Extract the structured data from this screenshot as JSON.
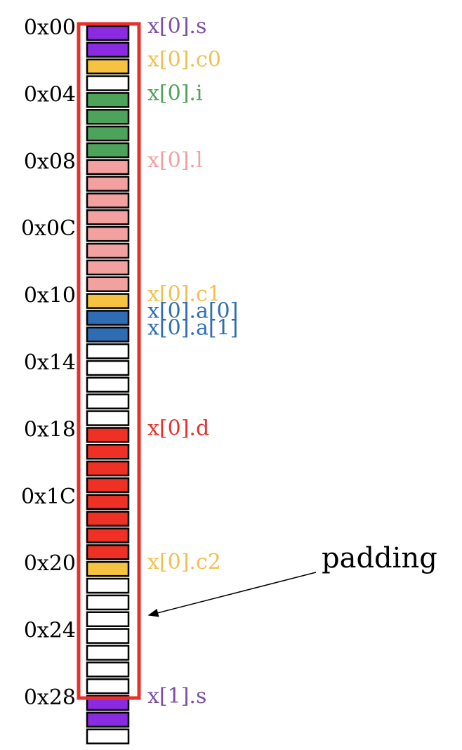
{
  "colors": {
    "short": "#8a2be2",
    "char": "#f5c242",
    "int": "#4ea35a",
    "long": "#f2a0a0",
    "array": "#2e6db4",
    "double": "#ee3124",
    "padding": "#ffffff",
    "struct_outline": "#e8302a",
    "cell_border": "#000000",
    "address_text": "#000000"
  },
  "byte_cells": [
    "short",
    "short",
    "char",
    "padding",
    "int",
    "int",
    "int",
    "int",
    "long",
    "long",
    "long",
    "long",
    "long",
    "long",
    "long",
    "long",
    "char",
    "array",
    "array",
    "padding",
    "padding",
    "padding",
    "padding",
    "padding",
    "double",
    "double",
    "double",
    "double",
    "double",
    "double",
    "double",
    "double",
    "char",
    "padding",
    "padding",
    "padding",
    "padding",
    "padding",
    "padding",
    "padding",
    "short",
    "short",
    "padding"
  ],
  "addresses": [
    {
      "text": "0x00",
      "byte": 0
    },
    {
      "text": "0x04",
      "byte": 4
    },
    {
      "text": "0x08",
      "byte": 8
    },
    {
      "text": "0x0C",
      "byte": 12
    },
    {
      "text": "0x10",
      "byte": 16
    },
    {
      "text": "0x14",
      "byte": 20
    },
    {
      "text": "0x18",
      "byte": 24
    },
    {
      "text": "0x1C",
      "byte": 28
    },
    {
      "text": "0x20",
      "byte": 32
    },
    {
      "text": "0x24",
      "byte": 36
    },
    {
      "text": "0x28",
      "byte": 40
    }
  ],
  "fields": [
    {
      "text": "x[0].s",
      "byte": 0,
      "color": "#7b4fa6"
    },
    {
      "text": "x[0].c0",
      "byte": 2,
      "color": "#f0c050"
    },
    {
      "text": "x[0].i",
      "byte": 4,
      "color": "#4ea35a"
    },
    {
      "text": "x[0].l",
      "byte": 8,
      "color": "#f2a0a0"
    },
    {
      "text": "x[0].c1",
      "byte": 16,
      "color": "#f0c050"
    },
    {
      "text": "x[0].a[0]",
      "byte": 17,
      "color": "#2e6db4"
    },
    {
      "text": "x[0].a[1]",
      "byte": 18,
      "color": "#2e6db4"
    },
    {
      "text": "x[0].d",
      "byte": 24,
      "color": "#e8302a"
    },
    {
      "text": "x[0].c2",
      "byte": 32,
      "color": "#f0c050"
    },
    {
      "text": "x[1].s",
      "byte": 40,
      "color": "#7b4fa6"
    }
  ],
  "annotation": {
    "text": "padding",
    "points_to_byte": 35
  }
}
